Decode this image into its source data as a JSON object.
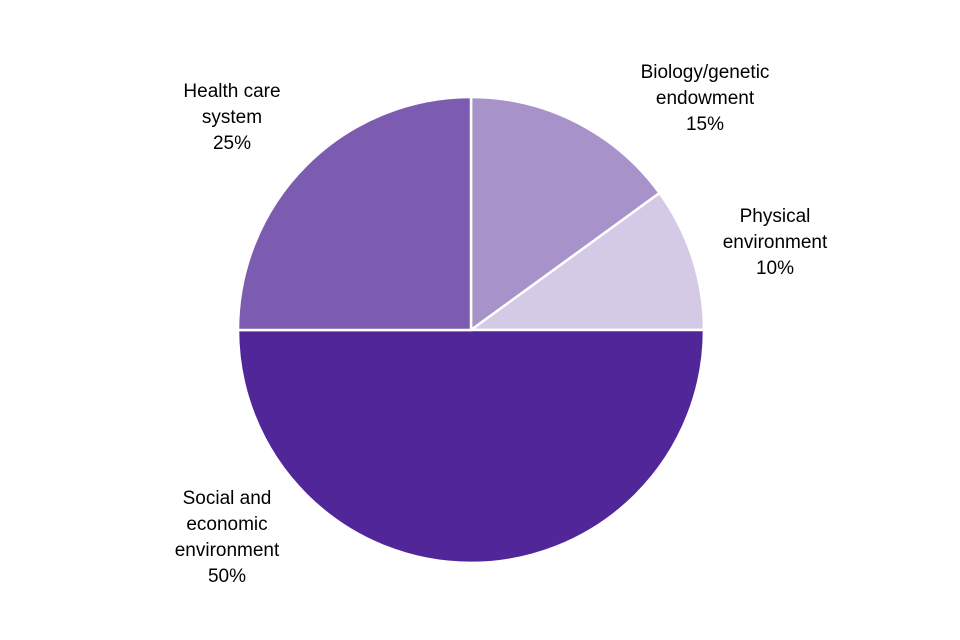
{
  "chart_data": {
    "type": "pie",
    "categories": [
      [
        "Biology/genetic",
        "endowment"
      ],
      [
        "Physical",
        "environment"
      ],
      [
        "Social and",
        "economic",
        "environment"
      ],
      [
        "Health care",
        "system"
      ]
    ],
    "values": [
      15,
      10,
      50,
      25
    ],
    "value_labels": [
      "15%",
      "10%",
      "50%",
      "25%"
    ],
    "colors": [
      "#a793ca",
      "#d4cae5",
      "#512698",
      "#7c5cb0"
    ]
  }
}
